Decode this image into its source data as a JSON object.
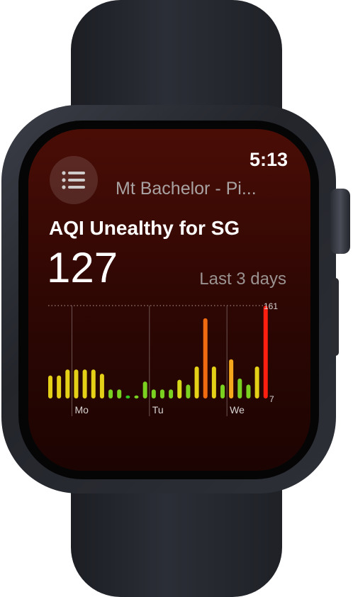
{
  "watch": {
    "time": "5:13",
    "location": "Mt Bachelor - Pi...",
    "menu_icon": "list-icon"
  },
  "aqi": {
    "headline": "AQI Unealthy for SG",
    "current_value": "127",
    "range_label": "Last 3 days"
  },
  "chart_data": {
    "type": "bar",
    "y_max_label": "161",
    "y_min_label": "7",
    "ylim": [
      7,
      161
    ],
    "day_labels": [
      "Mo",
      "Tu",
      "We"
    ],
    "day_start_index": [
      3,
      12,
      21
    ],
    "values": [
      45,
      45,
      55,
      55,
      55,
      55,
      48,
      22,
      22,
      12,
      12,
      35,
      22,
      22,
      22,
      38,
      30,
      60,
      140,
      60,
      30,
      72,
      40,
      30,
      60,
      161
    ],
    "colors": [
      "#e5d018",
      "#e5d018",
      "#e5d018",
      "#e5d018",
      "#e5d018",
      "#e5d018",
      "#e5d018",
      "#7bd120",
      "#7bd120",
      "#2ec71f",
      "#7bd120",
      "#7bd120",
      "#7bd120",
      "#7bd120",
      "#7bd120",
      "#d8d81a",
      "#7bd120",
      "#e5d018",
      "#f06a10",
      "#e5d018",
      "#7bd120",
      "#f5a81c",
      "#7bd120",
      "#7bd120",
      "#e5d018",
      "#ff1f10"
    ],
    "grid": true
  }
}
